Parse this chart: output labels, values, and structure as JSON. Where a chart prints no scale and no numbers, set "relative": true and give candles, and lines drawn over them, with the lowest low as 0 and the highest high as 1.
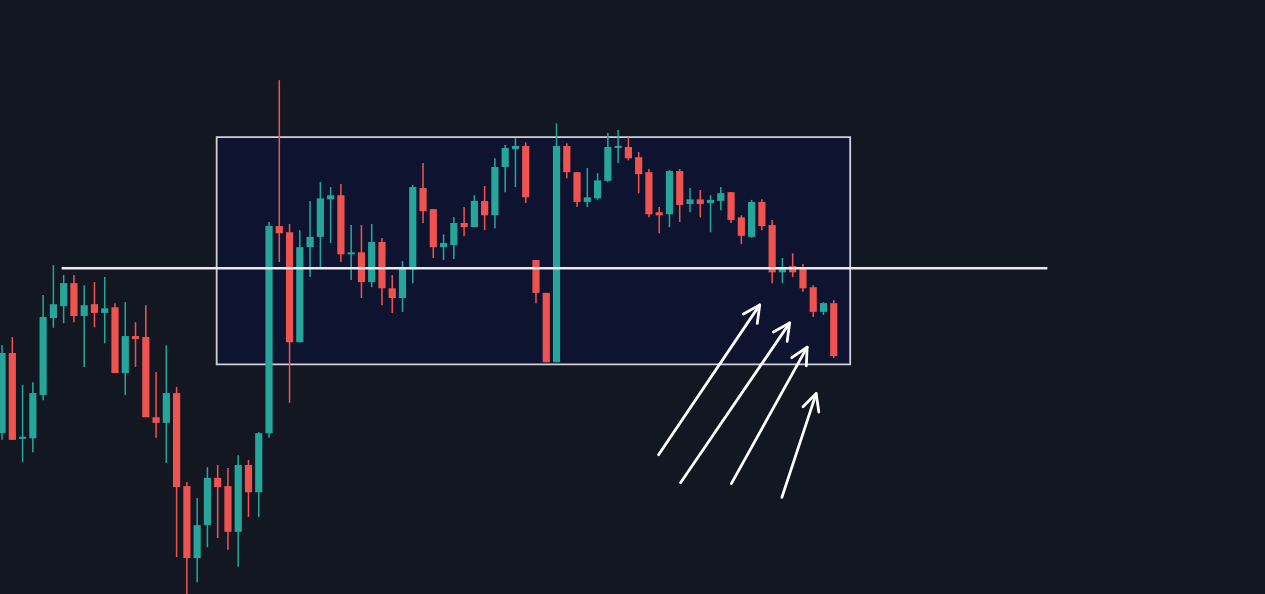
{
  "chart_data": {
    "type": "candlestick",
    "relative": true,
    "categories": [
      null,
      null,
      null,
      null,
      null,
      null,
      null,
      null,
      null,
      null,
      null,
      null,
      null,
      null,
      null,
      null,
      null,
      null,
      null,
      null,
      null,
      null,
      null,
      null,
      null,
      null,
      null,
      null,
      null,
      null,
      null,
      null,
      null,
      null,
      null,
      null,
      null,
      null,
      null,
      null,
      null,
      null,
      null,
      null,
      null,
      null,
      null,
      null,
      null,
      null,
      null,
      null,
      null,
      null,
      null,
      null,
      null,
      null,
      null,
      null,
      null,
      null,
      null,
      null,
      null,
      null,
      null,
      null,
      null,
      null,
      null,
      null,
      null,
      null,
      null,
      null,
      null,
      null,
      null,
      null,
      null,
      null
    ],
    "ohlc": [
      [
        0.313,
        0.484,
        0.3,
        0.469
      ],
      [
        0.469,
        0.5,
        0.3,
        0.3
      ],
      [
        0.302,
        0.407,
        0.257,
        0.305
      ],
      [
        0.303,
        0.412,
        0.276,
        0.391
      ],
      [
        0.387,
        0.582,
        0.377,
        0.539
      ],
      [
        0.537,
        0.64,
        0.518,
        0.564
      ],
      [
        0.56,
        0.621,
        0.527,
        0.605
      ],
      [
        0.605,
        0.621,
        0.529,
        0.541
      ],
      [
        0.541,
        0.601,
        0.442,
        0.562
      ],
      [
        0.564,
        0.607,
        0.519,
        0.547
      ],
      [
        0.547,
        0.617,
        0.488,
        0.556
      ],
      [
        0.558,
        0.566,
        0.43,
        0.43
      ],
      [
        0.43,
        0.568,
        0.387,
        0.502
      ],
      [
        0.502,
        0.529,
        0.442,
        0.496
      ],
      [
        0.5,
        0.562,
        0.344,
        0.344
      ],
      [
        0.344,
        0.432,
        0.304,
        0.333
      ],
      [
        0.333,
        0.484,
        0.255,
        0.391
      ],
      [
        0.391,
        0.403,
        0.072,
        0.208
      ],
      [
        0.21,
        0.218,
        0.0,
        0.07
      ],
      [
        0.07,
        0.187,
        0.023,
        0.134
      ],
      [
        0.134,
        0.247,
        0.091,
        0.226
      ],
      [
        0.226,
        0.251,
        0.109,
        0.208
      ],
      [
        0.21,
        0.245,
        0.086,
        0.121
      ],
      [
        0.121,
        0.27,
        0.053,
        0.251
      ],
      [
        0.251,
        0.261,
        0.15,
        0.198
      ],
      [
        0.198,
        0.315,
        0.15,
        0.313
      ],
      [
        0.313,
        0.724,
        0.304,
        0.716
      ],
      [
        0.716,
        1.0,
        0.646,
        0.702
      ],
      [
        0.704,
        0.72,
        0.372,
        0.49
      ],
      [
        0.49,
        0.708,
        0.49,
        0.675
      ],
      [
        0.675,
        0.765,
        0.617,
        0.695
      ],
      [
        0.695,
        0.802,
        0.636,
        0.77
      ],
      [
        0.768,
        0.792,
        0.683,
        0.776
      ],
      [
        0.776,
        0.798,
        0.646,
        0.661
      ],
      [
        0.661,
        0.718,
        0.611,
        0.665
      ],
      [
        0.665,
        0.718,
        0.576,
        0.607
      ],
      [
        0.607,
        0.72,
        0.597,
        0.685
      ],
      [
        0.685,
        0.693,
        0.562,
        0.595
      ],
      [
        0.595,
        0.621,
        0.547,
        0.576
      ],
      [
        0.576,
        0.648,
        0.549,
        0.634
      ],
      [
        0.632,
        0.796,
        0.605,
        0.792
      ],
      [
        0.79,
        0.839,
        0.722,
        0.745
      ],
      [
        0.749,
        0.749,
        0.654,
        0.675
      ],
      [
        0.675,
        0.7,
        0.65,
        0.683
      ],
      [
        0.679,
        0.733,
        0.652,
        0.722
      ],
      [
        0.722,
        0.753,
        0.696,
        0.714
      ],
      [
        0.714,
        0.776,
        0.714,
        0.765
      ],
      [
        0.765,
        0.794,
        0.708,
        0.737
      ],
      [
        0.737,
        0.848,
        0.712,
        0.831
      ],
      [
        0.831,
        0.874,
        0.782,
        0.868
      ],
      [
        0.866,
        0.887,
        0.792,
        0.872
      ],
      [
        0.872,
        0.879,
        0.761,
        0.772
      ],
      [
        0.65,
        0.65,
        0.566,
        0.586
      ],
      [
        0.586,
        0.586,
        0.451,
        0.451
      ],
      [
        0.451,
        0.916,
        0.451,
        0.872
      ],
      [
        0.872,
        0.877,
        0.809,
        0.821
      ],
      [
        0.821,
        0.821,
        0.753,
        0.763
      ],
      [
        0.763,
        0.829,
        0.753,
        0.772
      ],
      [
        0.77,
        0.819,
        0.767,
        0.805
      ],
      [
        0.804,
        0.897,
        0.802,
        0.87
      ],
      [
        0.868,
        0.903,
        0.839,
        0.872
      ],
      [
        0.87,
        0.889,
        0.844,
        0.848
      ],
      [
        0.85,
        0.86,
        0.78,
        0.817
      ],
      [
        0.821,
        0.827,
        0.733,
        0.739
      ],
      [
        0.743,
        0.753,
        0.702,
        0.737
      ],
      [
        0.739,
        0.825,
        0.714,
        0.823
      ],
      [
        0.823,
        0.827,
        0.724,
        0.757
      ],
      [
        0.759,
        0.79,
        0.743,
        0.768
      ],
      [
        0.768,
        0.786,
        0.733,
        0.759
      ],
      [
        0.761,
        0.776,
        0.704,
        0.767
      ],
      [
        0.765,
        0.792,
        0.747,
        0.78
      ],
      [
        0.782,
        0.782,
        0.722,
        0.728
      ],
      [
        0.733,
        0.737,
        0.681,
        0.697
      ],
      [
        0.695,
        0.767,
        0.693,
        0.763
      ],
      [
        0.763,
        0.768,
        0.708,
        0.716
      ],
      [
        0.718,
        0.728,
        0.605,
        0.626
      ],
      [
        0.626,
        0.654,
        0.605,
        0.636
      ],
      [
        0.638,
        0.663,
        0.617,
        0.626
      ],
      [
        0.636,
        0.642,
        0.588,
        0.595
      ],
      [
        0.597,
        0.601,
        0.539,
        0.549
      ],
      [
        0.549,
        0.568,
        0.543,
        0.566
      ],
      [
        0.566,
        0.572,
        0.459,
        0.463
      ]
    ],
    "colors": [
      "#26a69a",
      "#ef5350",
      "#26a69a",
      "#26a69a",
      "#26a69a",
      "#26a69a",
      "#26a69a",
      "#ef5350",
      "#26a69a",
      "#ef5350",
      "#26a69a",
      "#ef5350",
      "#26a69a",
      "#ef5350",
      "#ef5350",
      "#ef5350",
      "#26a69a",
      "#ef5350",
      "#ef5350",
      "#26a69a",
      "#26a69a",
      "#ef5350",
      "#ef5350",
      "#26a69a",
      "#ef5350",
      "#26a69a",
      "#26a69a",
      "#ef5350",
      "#ef5350",
      "#26a69a",
      "#26a69a",
      "#26a69a",
      "#26a69a",
      "#ef5350",
      "#26a69a",
      "#ef5350",
      "#26a69a",
      "#ef5350",
      "#ef5350",
      "#26a69a",
      "#26a69a",
      "#ef5350",
      "#ef5350",
      "#26a69a",
      "#26a69a",
      "#ef5350",
      "#26a69a",
      "#ef5350",
      "#26a69a",
      "#26a69a",
      "#26a69a",
      "#ef5350",
      "#ef5350",
      "#ef5350",
      "#26a69a",
      "#ef5350",
      "#ef5350",
      "#26a69a",
      "#26a69a",
      "#26a69a",
      "#26a69a",
      "#ef5350",
      "#ef5350",
      "#ef5350",
      "#ef5350",
      "#26a69a",
      "#ef5350",
      "#26a69a",
      "#ef5350",
      "#26a69a",
      "#26a69a",
      "#ef5350",
      "#ef5350",
      "#26a69a",
      "#ef5350",
      "#ef5350",
      "#26a69a",
      "#ef5350",
      "#ef5350",
      "#ef5350",
      "#26a69a",
      "#ef5350"
    ],
    "ref_lines": [
      {
        "axis": "y",
        "value": 0.634,
        "color": "#e8e8ee"
      }
    ],
    "bands": [
      {
        "axis": "y",
        "from": 0.447,
        "to": 0.889,
        "color": "#0e1430"
      }
    ]
  }
}
